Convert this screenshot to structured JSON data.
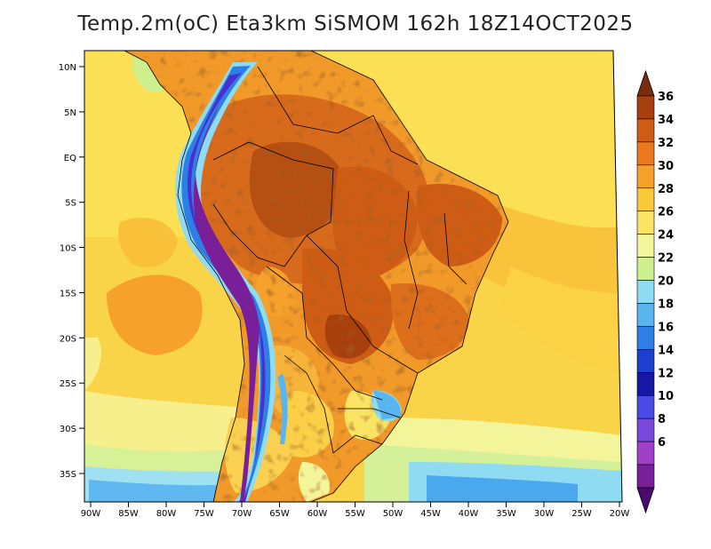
{
  "title": "Temp.2m(oC) Eta3km SiSMOM 162h 18Z14OCT2025",
  "map": {
    "variable": "Temp.2m(oC)",
    "model": "Eta3km SiSMOM",
    "forecast_hour": "162h",
    "valid_time": "18Z14OCT2025",
    "lon_ticks": [
      "90W",
      "85W",
      "80W",
      "75W",
      "70W",
      "65W",
      "60W",
      "55W",
      "50W",
      "45W",
      "40W",
      "35W",
      "30W",
      "25W",
      "20W"
    ],
    "lat_ticks": [
      "10N",
      "5N",
      "EQ",
      "5S",
      "10S",
      "15S",
      "20S",
      "25S",
      "30S",
      "35S"
    ],
    "colorbar": {
      "labels": [
        "36",
        "34",
        "32",
        "30",
        "28",
        "26",
        "24",
        "22",
        "20",
        "18",
        "16",
        "14",
        "12",
        "10",
        "8",
        "6"
      ],
      "colors": [
        "#7a2d0b",
        "#a8400e",
        "#cf5c14",
        "#ec7a1c",
        "#f7a12c",
        "#f9c93a",
        "#fbe463",
        "#f4f49a",
        "#cdf08f",
        "#8fdcf2",
        "#59b5ef",
        "#2e7fe5",
        "#1f3fcf",
        "#1617a4",
        "#4a4ae6",
        "#7a48dd",
        "#a03fc8",
        "#7a1f9a",
        "#4a0a6e"
      ]
    }
  }
}
